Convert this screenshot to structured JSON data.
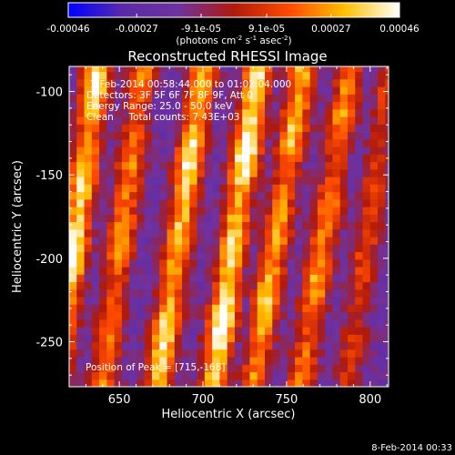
{
  "chart_data": {
    "type": "heatmap",
    "title": "Reconstructed RHESSI Image",
    "xlabel": "Heliocentric X (arcsec)",
    "ylabel": "Heliocentric Y (arcsec)",
    "xlim": [
      620,
      811
    ],
    "ylim": [
      -277,
      -85
    ],
    "x_ticks": [
      650,
      700,
      750,
      800
    ],
    "x_tick_labels": [
      "650",
      "700",
      "750",
      "800"
    ],
    "y_ticks": [
      -100,
      -150,
      -200,
      -250
    ],
    "y_tick_labels": [
      "-100",
      "-150",
      "-200",
      "-250"
    ],
    "colorbar": {
      "tick_values": [
        -0.00046,
        -0.00027,
        -9.1e-05,
        9.1e-05,
        0.00027,
        0.00046
      ],
      "tick_labels": [
        "-0.00046",
        "-0.00027",
        "-9.1e-05",
        "9.1e-05",
        "0.00027",
        "0.00046"
      ],
      "units_base": "(photons cm",
      "units_sup1": "-2",
      "units_mid": " s",
      "units_sup2": "-1",
      "units_mid2": " asec",
      "units_sup3": "-2",
      "units_end": ")",
      "range": [
        -0.00046,
        0.00046
      ]
    },
    "annotations": {
      "time_range": "7-Feb-2014 00:58:44.000 to 01:02:04.000",
      "detectors": "Detectors: 3F 5F 6F 7F 8F 9F, Att 0",
      "energy": "Energy Range: 25.0 - 50.0 keV",
      "clean": "Clean     Total counts: 7.43E+03",
      "peak": "Position of Peak = [715,-168]"
    },
    "peak_position": [
      715,
      -168
    ],
    "bright_ridges": [
      {
        "x_top": 637,
        "x_bottom": 612,
        "intensity": 0.95
      },
      {
        "x_top": 664,
        "x_bottom": 640,
        "intensity": 0.65
      },
      {
        "x_top": 700,
        "x_bottom": 673,
        "intensity": 0.88
      },
      {
        "x_top": 733,
        "x_bottom": 706,
        "intensity": 1.0
      },
      {
        "x_top": 760,
        "x_bottom": 730,
        "intensity": 0.78
      },
      {
        "x_top": 788,
        "x_bottom": 758,
        "intensity": 0.68
      },
      {
        "x_top": 812,
        "x_bottom": 786,
        "intensity": 0.45
      }
    ],
    "colormap_stops": [
      "#0000ff",
      "#5a2aa8",
      "#6f32a0",
      "#b01a0c",
      "#ff4a00",
      "#ffc000",
      "#ffffff"
    ]
  },
  "footer": {
    "date_stamp": "8-Feb-2014 00:33"
  }
}
